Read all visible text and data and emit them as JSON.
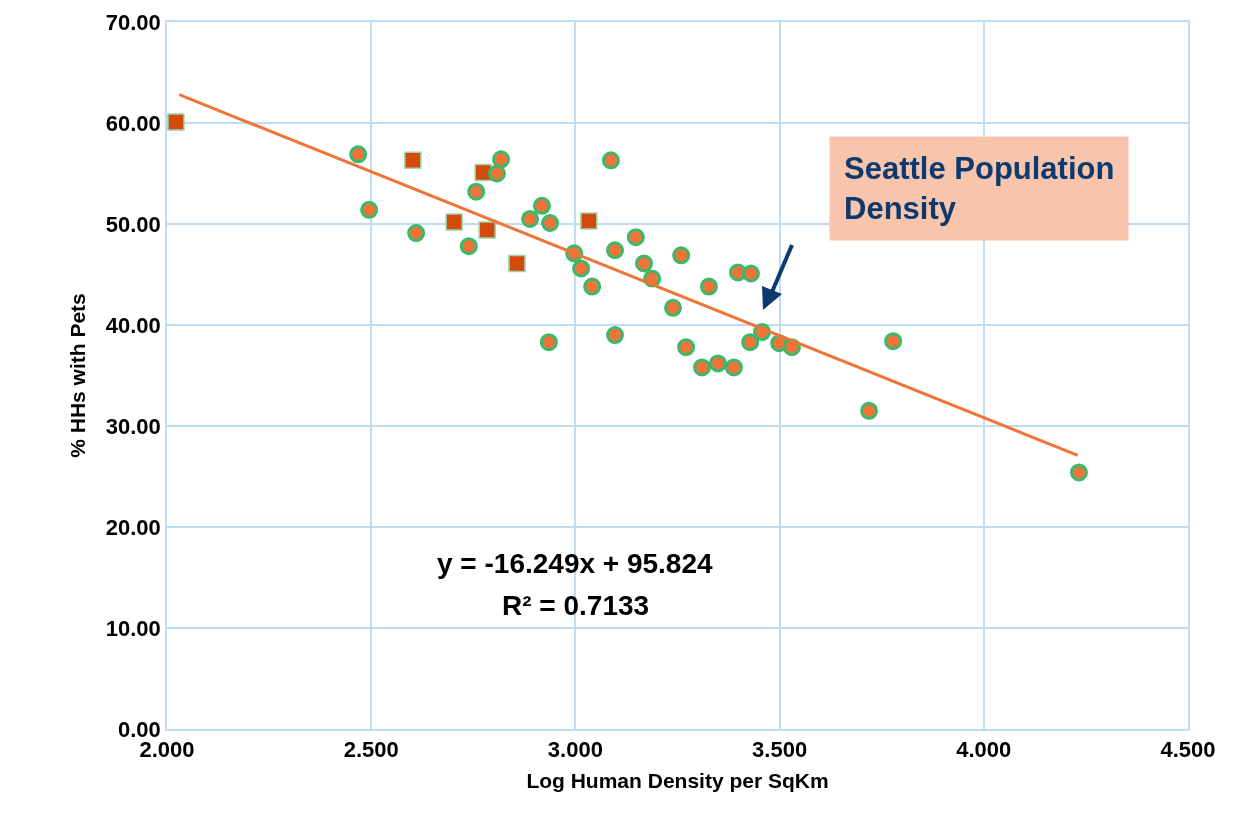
{
  "chart_data": {
    "type": "scatter",
    "xlabel": "Log Human Density per SqKm",
    "ylabel": "% HHs with Pets",
    "xlim": [
      2.0,
      4.5
    ],
    "xticks": [
      {
        "value": 2.0,
        "label": "2.000"
      },
      {
        "value": 2.5,
        "label": "2.500"
      },
      {
        "value": 3.0,
        "label": "3.000"
      },
      {
        "value": 3.5,
        "label": "3.500"
      },
      {
        "value": 4.0,
        "label": "4.000"
      },
      {
        "value": 4.5,
        "label": "4.500"
      }
    ],
    "ylim": [
      0,
      70
    ],
    "yticks": [
      {
        "value": 0,
        "label": "0.00"
      },
      {
        "value": 10,
        "label": "10.00"
      },
      {
        "value": 20,
        "label": "20.00"
      },
      {
        "value": 30,
        "label": "30.00"
      },
      {
        "value": 40,
        "label": "40.00"
      },
      {
        "value": 50,
        "label": "50.00"
      },
      {
        "value": 60,
        "label": "60.00"
      },
      {
        "value": 70,
        "label": "70.00"
      }
    ],
    "grid": true,
    "series": [
      {
        "marker": "square",
        "color": "#d24a0c",
        "x": [
          2.022,
          2.602,
          2.703,
          2.774,
          2.784,
          2.857,
          3.033
        ],
        "values": [
          60.1,
          56.3,
          50.2,
          55.1,
          49.4,
          46.1,
          50.3
        ]
      },
      {
        "marker": "circle",
        "color": "#f07438",
        "x": [
          2.468,
          2.495,
          2.61,
          2.818,
          2.808,
          2.757,
          2.739,
          2.918,
          2.889,
          2.938,
          3.087,
          2.997,
          3.014,
          3.041,
          3.097,
          3.148,
          3.168,
          3.188,
          3.259,
          3.239,
          3.327,
          3.398,
          3.43,
          2.935,
          3.097,
          3.271,
          3.31,
          3.349,
          3.388,
          3.428,
          3.457,
          3.499,
          3.53,
          3.719,
          4.233,
          3.778
        ],
        "values": [
          56.9,
          51.4,
          49.1,
          56.4,
          55.0,
          53.2,
          47.8,
          51.8,
          50.5,
          50.1,
          56.3,
          47.1,
          45.6,
          43.8,
          47.4,
          48.7,
          46.1,
          44.6,
          46.9,
          41.7,
          43.8,
          45.2,
          45.1,
          38.3,
          39.0,
          37.8,
          35.8,
          36.2,
          35.8,
          38.3,
          39.3,
          38.2,
          37.8,
          31.5,
          25.4,
          38.4
        ]
      },
      {
        "type": "line",
        "line_style": "solid",
        "color": "#f07438",
        "x": [
          2.03,
          4.23
        ],
        "values": [
          62.8,
          27.1
        ]
      }
    ],
    "annotations": [
      "y = -16.249x + 95.824",
      "R² = 0.7133",
      "Seattle Population Density"
    ]
  }
}
